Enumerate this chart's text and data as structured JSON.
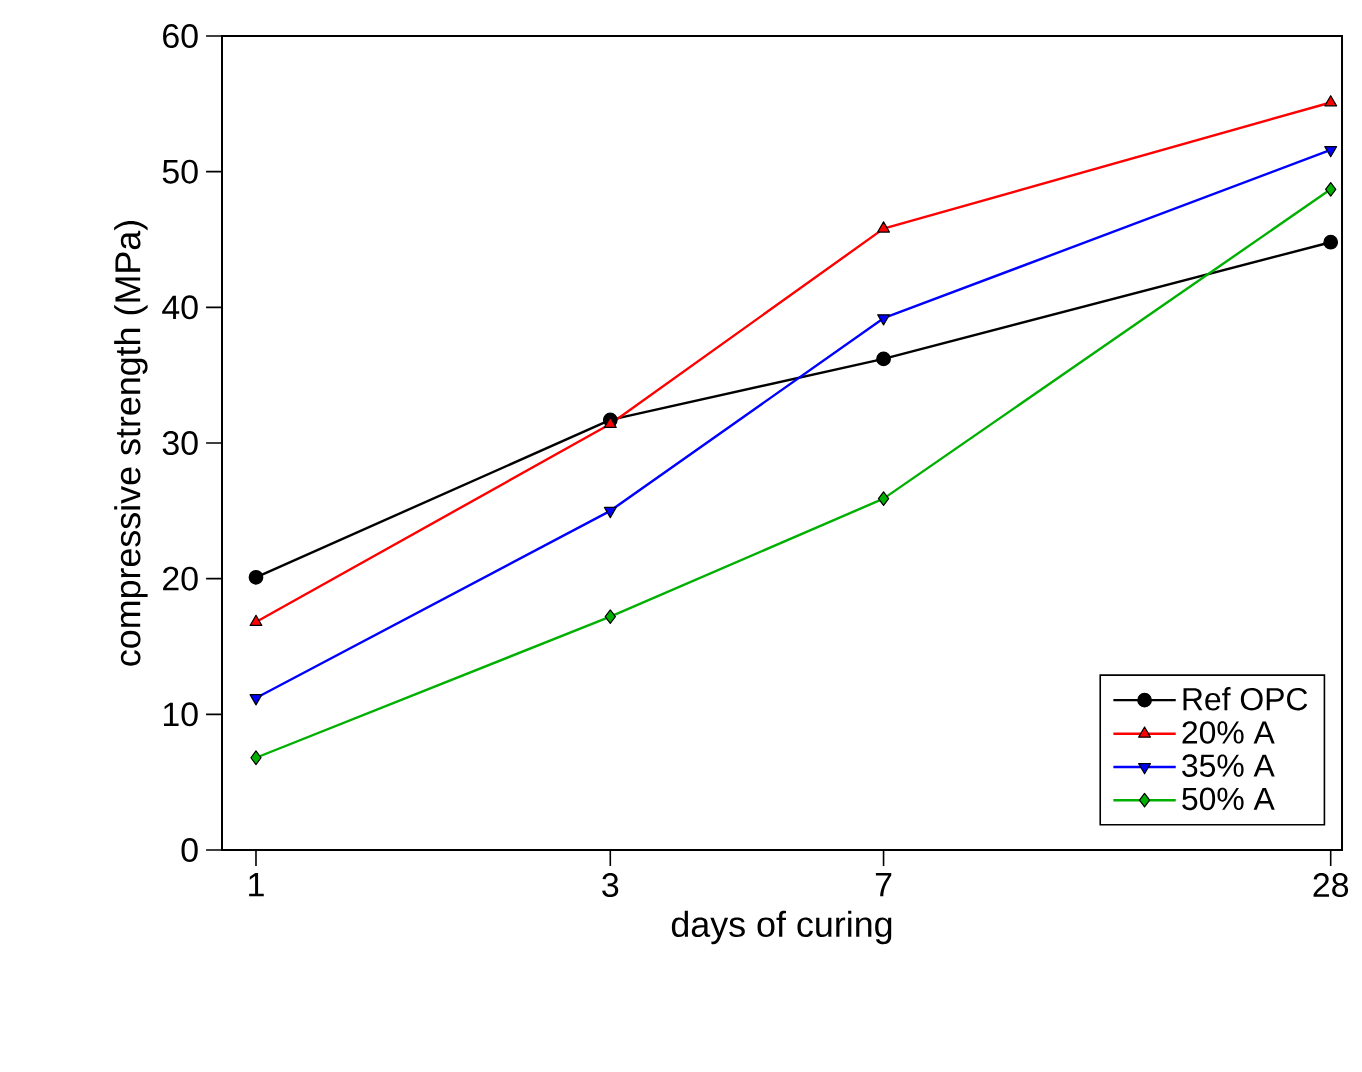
{
  "chart_data": {
    "type": "line",
    "xlabel": "days of curing",
    "ylabel": "compressive strength (MPa)",
    "x": [
      1,
      3,
      7,
      28
    ],
    "log": "x",
    "xlim": [
      0.9,
      29
    ],
    "xticks": [
      1,
      3,
      7,
      28
    ],
    "ylim": [
      0,
      60
    ],
    "yticks": [
      0,
      10,
      20,
      30,
      40,
      50,
      60
    ],
    "legend": "bottom right",
    "grid": false,
    "series": [
      {
        "name": "Ref OPC",
        "color": "#000000",
        "marker": "circle",
        "values": [
          20.1,
          31.7,
          36.2,
          44.8
        ]
      },
      {
        "name": "20% A",
        "color": "#ff0000",
        "marker": "triangle",
        "values": [
          16.8,
          31.4,
          45.8,
          55.1
        ]
      },
      {
        "name": "35% A",
        "color": "#0000ff",
        "marker": "triangle-down",
        "values": [
          11.2,
          25.0,
          39.2,
          51.6
        ]
      },
      {
        "name": "50% A",
        "color": "#00b000",
        "marker": "diamond",
        "values": [
          6.8,
          17.2,
          25.9,
          48.7
        ]
      }
    ]
  }
}
